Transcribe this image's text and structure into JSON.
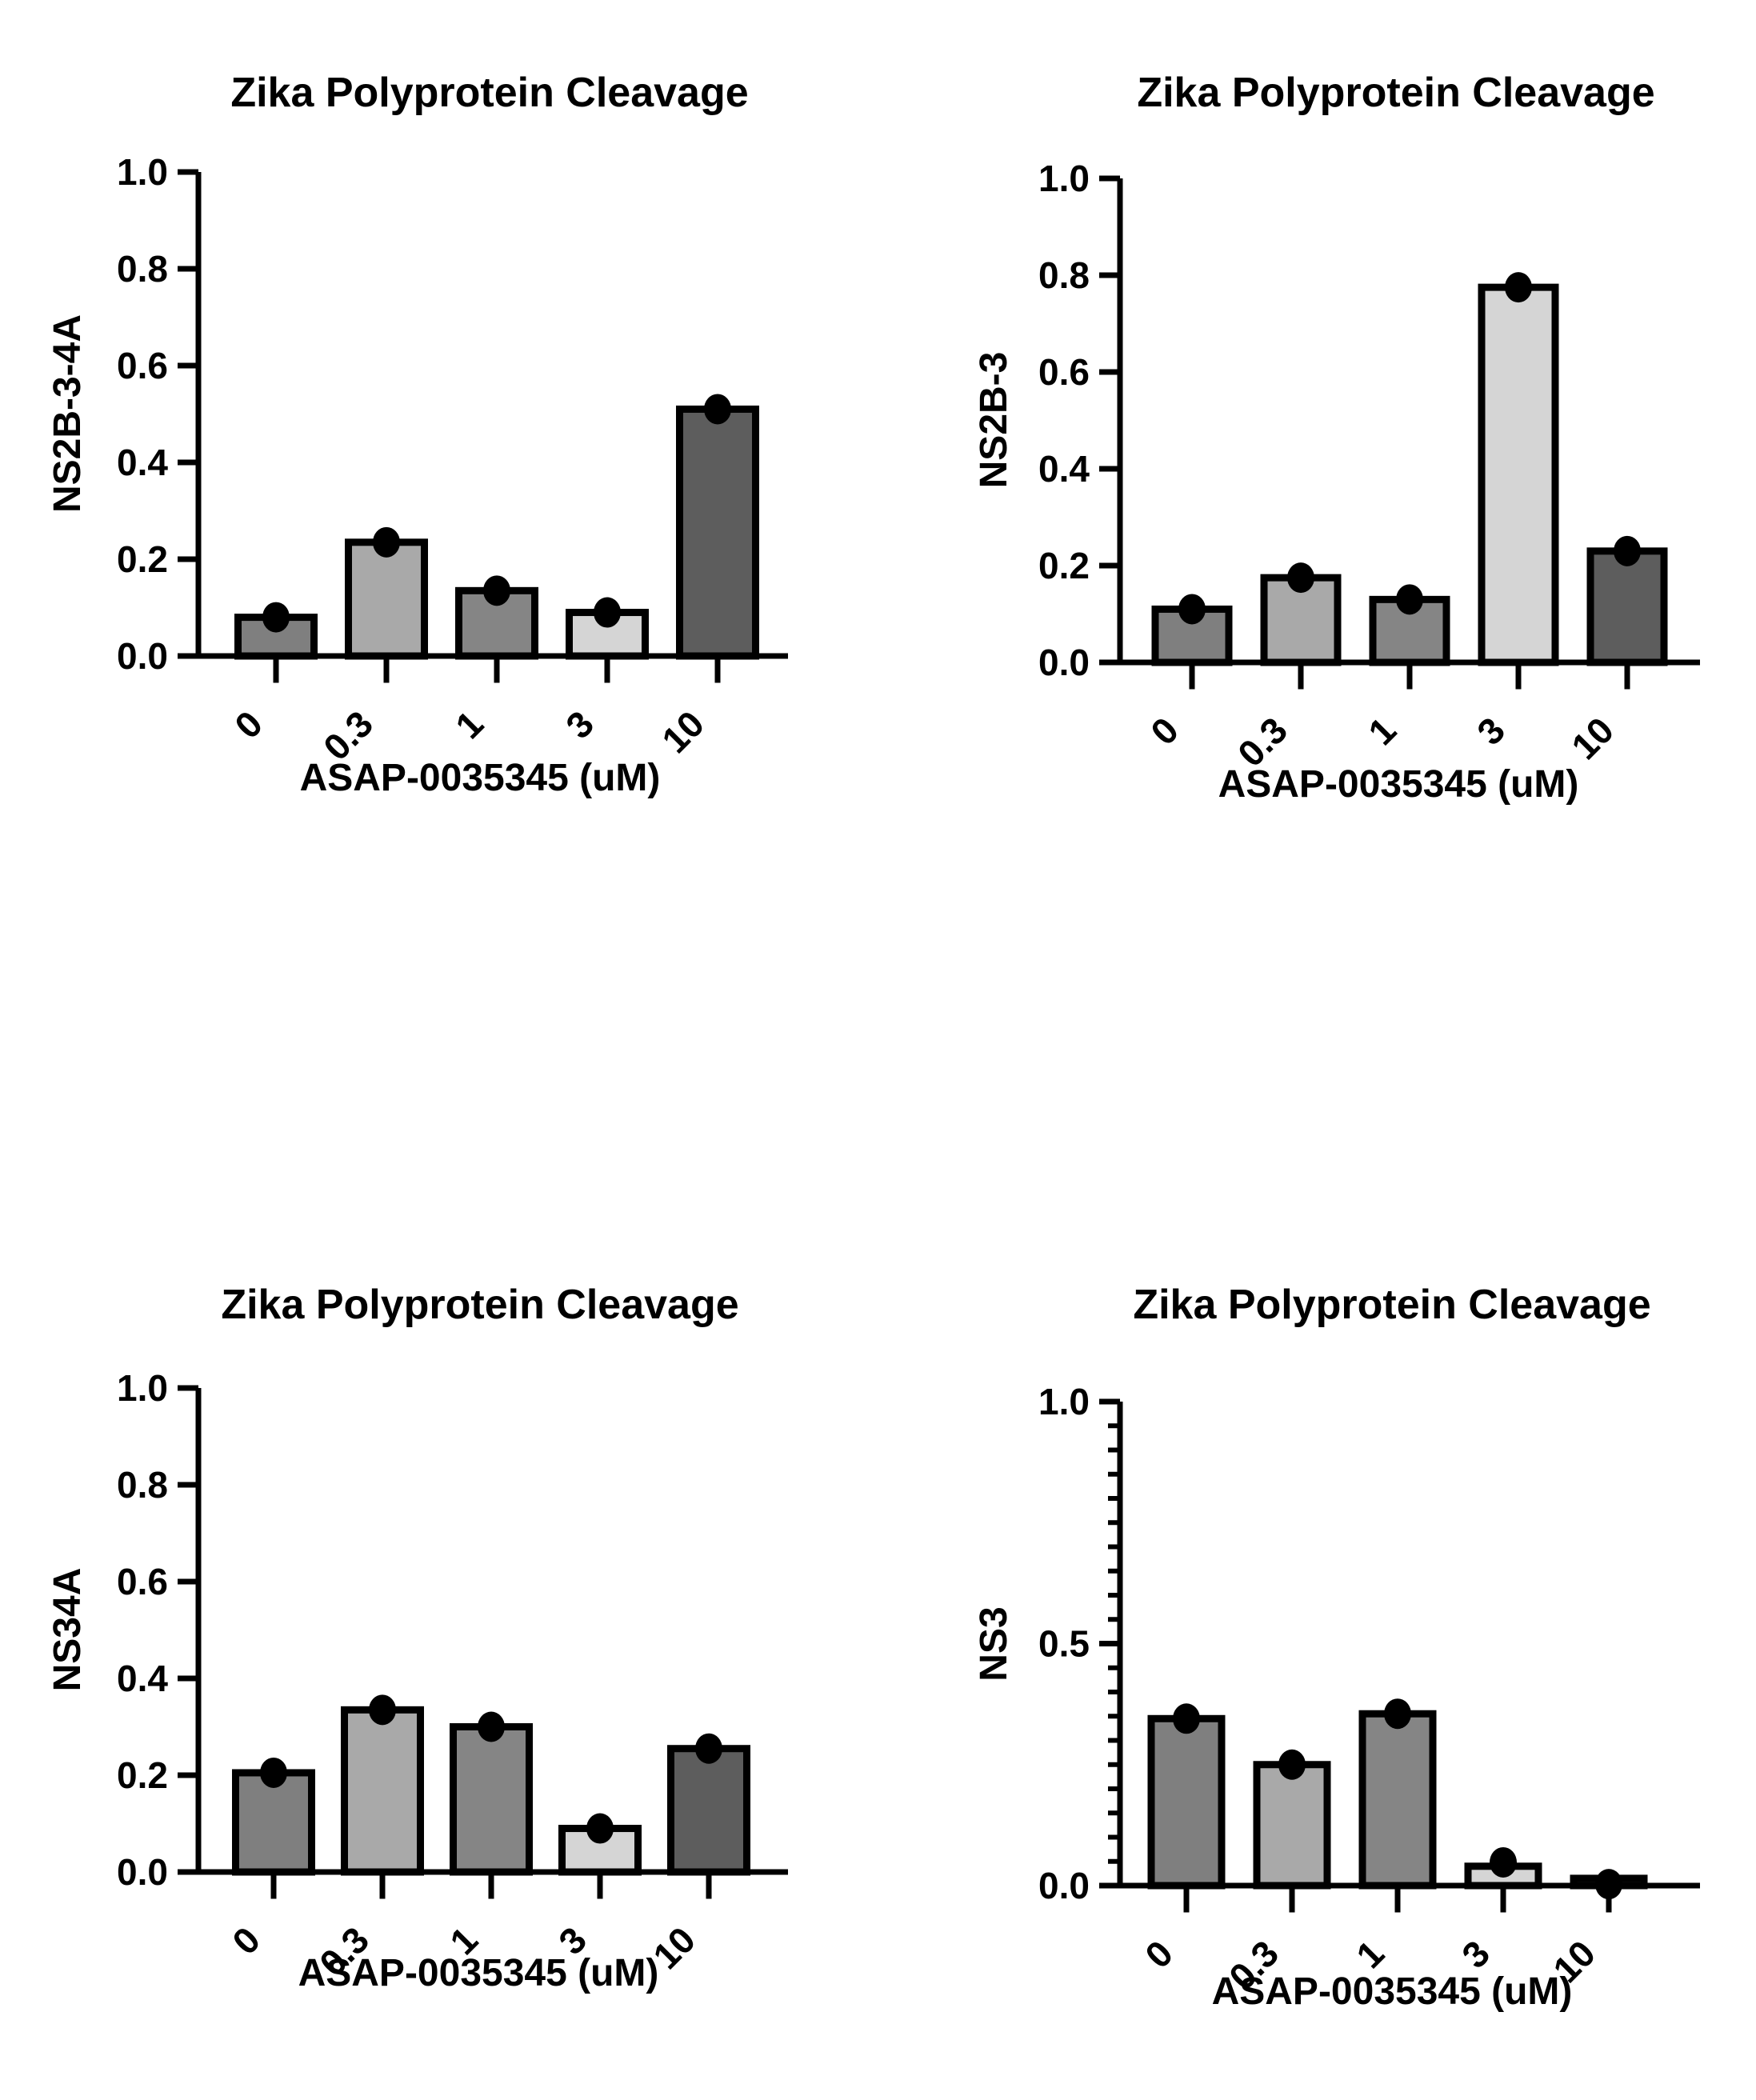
{
  "figure": {
    "background": "#ffffff",
    "axis_color": "#000000",
    "point_color": "#000000",
    "bar_outline_color": "#000000",
    "bar_fill_colors": [
      "#7f7f7f",
      "#a9a9a9",
      "#858585",
      "#d5d5d5",
      "#5d5d5d"
    ]
  },
  "chart_data": [
    {
      "id": "ns2b-3-4a",
      "type": "bar",
      "title": "Zika Polyprotein Cleavage",
      "ylabel": "NS2B-3-4A",
      "xlabel": "ASAP-0035345 (uM)",
      "categories": [
        "0",
        "0.3",
        "1",
        "3",
        "10"
      ],
      "values": [
        0.08,
        0.235,
        0.135,
        0.09,
        0.51
      ],
      "point_values": [
        0.08,
        0.235,
        0.135,
        0.09,
        0.51
      ],
      "bar_colors": [
        "#7f7f7f",
        "#a9a9a9",
        "#858585",
        "#d5d5d5",
        "#5d5d5d"
      ],
      "ylim": [
        0.0,
        1.0
      ],
      "yticks": [
        0.0,
        0.2,
        0.4,
        0.6,
        0.8,
        1.0
      ],
      "ytick_labels": [
        "0.0",
        "0.2",
        "0.4",
        "0.6",
        "0.8",
        "1.0"
      ],
      "minor_tick_step": null,
      "grid": false,
      "legend": null
    },
    {
      "id": "ns2b-3",
      "type": "bar",
      "title": "Zika Polyprotein Cleavage",
      "ylabel": "NS2B-3",
      "xlabel": "ASAP-0035345 (uM)",
      "categories": [
        "0",
        "0.3",
        "1",
        "3",
        "10"
      ],
      "values": [
        0.11,
        0.175,
        0.13,
        0.775,
        0.23
      ],
      "point_values": [
        0.11,
        0.175,
        0.13,
        0.775,
        0.23
      ],
      "bar_colors": [
        "#7f7f7f",
        "#a9a9a9",
        "#858585",
        "#d5d5d5",
        "#5d5d5d"
      ],
      "ylim": [
        0.0,
        1.0
      ],
      "yticks": [
        0.0,
        0.2,
        0.4,
        0.6,
        0.8,
        1.0
      ],
      "ytick_labels": [
        "0.0",
        "0.2",
        "0.4",
        "0.6",
        "0.8",
        "1.0"
      ],
      "minor_tick_step": null,
      "grid": false,
      "legend": null
    },
    {
      "id": "ns34a",
      "type": "bar",
      "title": "Zika Polyprotein Cleavage",
      "ylabel": "NS34A",
      "xlabel": "ASAP-0035345 (uM)",
      "categories": [
        "0",
        "0.3",
        "1",
        "3",
        "10"
      ],
      "values": [
        0.205,
        0.335,
        0.3,
        0.09,
        0.255
      ],
      "point_values": [
        0.205,
        0.335,
        0.3,
        0.09,
        0.255
      ],
      "bar_colors": [
        "#7f7f7f",
        "#a9a9a9",
        "#858585",
        "#d5d5d5",
        "#5d5d5d"
      ],
      "ylim": [
        0.0,
        1.0
      ],
      "yticks": [
        0.0,
        0.2,
        0.4,
        0.6,
        0.8,
        1.0
      ],
      "ytick_labels": [
        "0.0",
        "0.2",
        "0.4",
        "0.6",
        "0.8",
        "1.0"
      ],
      "minor_tick_step": null,
      "grid": false,
      "legend": null
    },
    {
      "id": "ns3",
      "type": "bar",
      "title": "Zika Polyprotein Cleavage",
      "ylabel": "NS3",
      "xlabel": "ASAP-0035345 (uM)",
      "categories": [
        "0",
        "0.3",
        "1",
        "3",
        "10"
      ],
      "values": [
        0.345,
        0.25,
        0.355,
        0.04,
        0.015
      ],
      "point_values": [
        0.345,
        0.25,
        0.355,
        0.048,
        0.003
      ],
      "bar_colors": [
        "#7f7f7f",
        "#a9a9a9",
        "#858585",
        "#d5d5d5",
        "#5d5d5d"
      ],
      "ylim": [
        0.0,
        1.0
      ],
      "yticks": [
        0.0,
        0.5,
        1.0
      ],
      "ytick_labels": [
        "0.0",
        "0.5",
        "1.0"
      ],
      "minor_tick_step": 0.05,
      "grid": false,
      "legend": null
    }
  ]
}
